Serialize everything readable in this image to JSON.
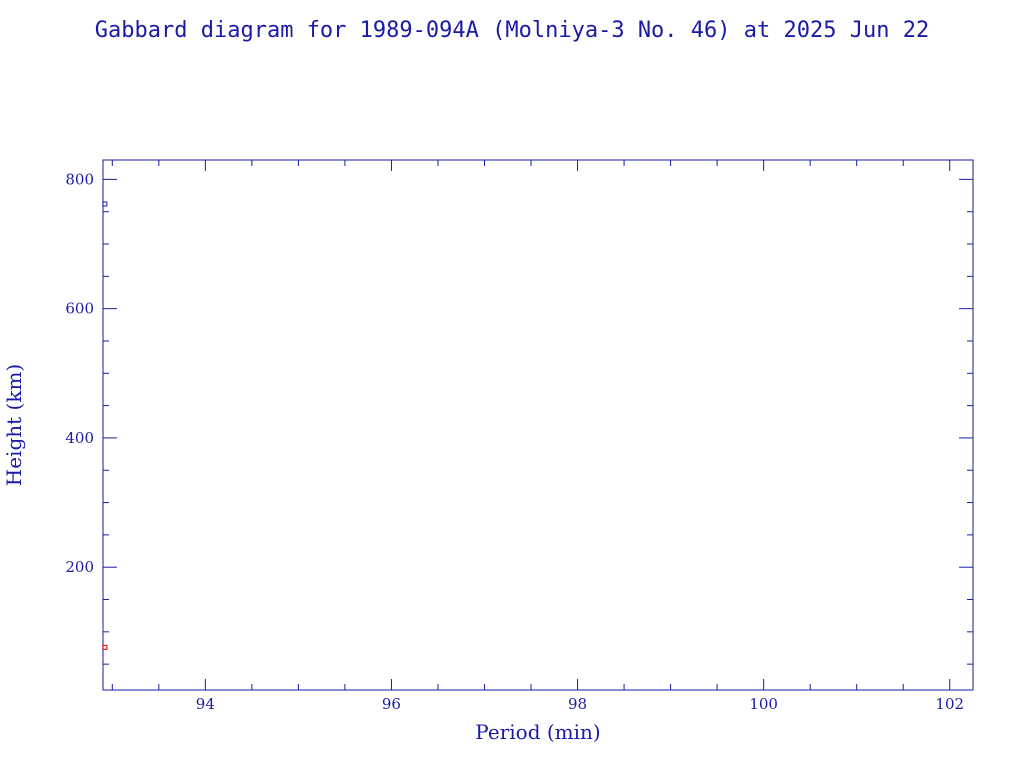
{
  "chart_data": {
    "type": "scatter",
    "title": "Gabbard diagram for 1989-094A (Molniya-3 No. 46) at 2025 Jun 22",
    "xlabel": "Period (min)",
    "ylabel": "Height (km)",
    "xlim": [
      92.9,
      102.25
    ],
    "ylim": [
      10,
      830
    ],
    "x_ticks": [
      94,
      96,
      98,
      100,
      102
    ],
    "x_tick_labels": [
      "94",
      "96",
      "98",
      "100",
      "102"
    ],
    "x_minor_step": 0.5,
    "y_ticks": [
      200,
      400,
      600,
      800
    ],
    "y_tick_labels": [
      "200",
      "400",
      "600",
      "800"
    ],
    "y_minor_step": 50,
    "grid": false,
    "legend": "none",
    "series": [
      {
        "marker": "apogee",
        "color": "#1a1aa6",
        "points": [
          {
            "x": 92.92,
            "y": 762
          }
        ]
      },
      {
        "marker": "perigee",
        "color": "#cc0000",
        "points": [
          {
            "x": 92.92,
            "y": 76
          }
        ]
      }
    ],
    "colors": {
      "axis": "#1a1aa6",
      "text": "#1a1aa6",
      "background": "#ffffff"
    }
  }
}
